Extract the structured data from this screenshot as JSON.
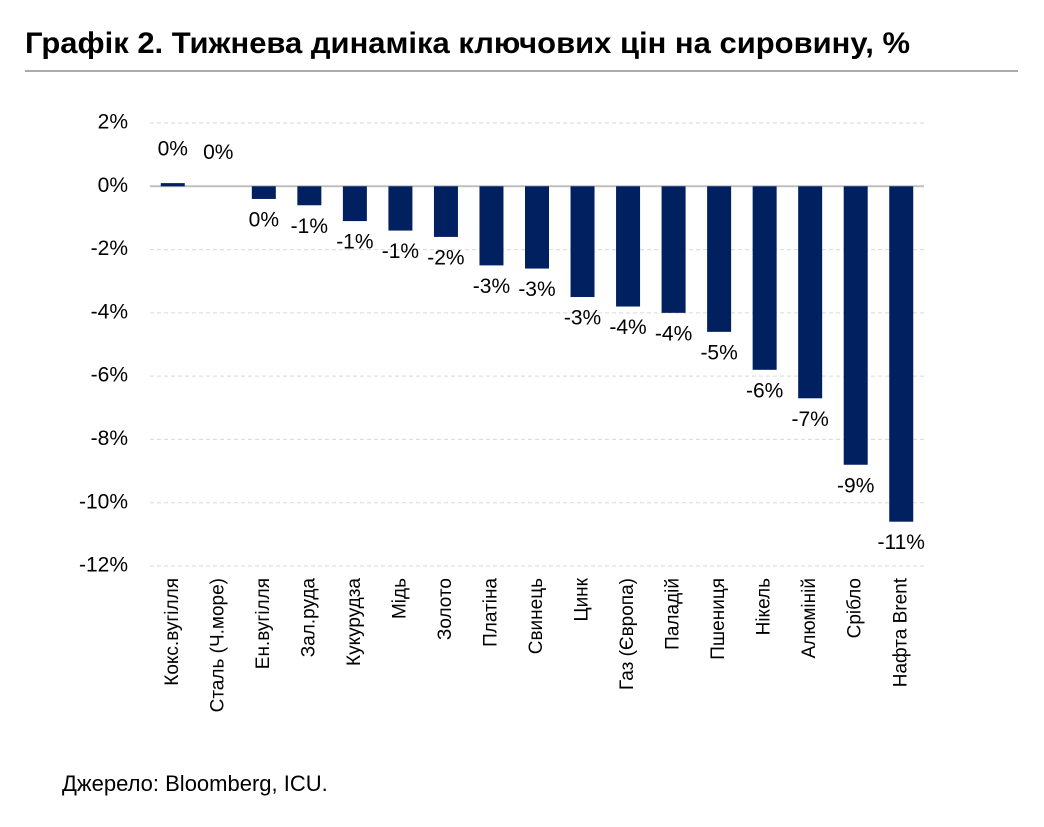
{
  "chart_data": {
    "type": "bar",
    "title": "Графік 2. Тижнева динаміка ключових цін на сировину, %",
    "source": "Джерело: Bloomberg, ICU.",
    "categories": [
      "Кокс.вугілля",
      "Сталь (Ч.море)",
      "Ен.вугілля",
      "Зал.руда",
      "Кукурудза",
      "Мідь",
      "Золото",
      "Платіна",
      "Свинець",
      "Цинк",
      "Газ (Європа)",
      "Паладій",
      "Пшениця",
      "Нікель",
      "Алюміній",
      "Срібло",
      "Нафта Brent"
    ],
    "values": [
      0.1,
      0.0,
      -0.4,
      -0.6,
      -1.1,
      -1.4,
      -1.6,
      -2.5,
      -2.6,
      -3.5,
      -3.8,
      -4.0,
      -4.6,
      -5.8,
      -6.7,
      -8.8,
      -10.6
    ],
    "value_labels": [
      "0%",
      "0%",
      "0%",
      "-1%",
      "-1%",
      "-1%",
      "-2%",
      "-3%",
      "-3%",
      "-3%",
      "-4%",
      "-4%",
      "-5%",
      "-6%",
      "-7%",
      "-9%",
      "-11%"
    ],
    "color": "#002060",
    "ylim": [
      -12,
      2
    ],
    "yticks": [
      {
        "value": 2,
        "label": "2%"
      },
      {
        "value": 0,
        "label": "0%"
      },
      {
        "value": -2,
        "label": "-2%"
      },
      {
        "value": -4,
        "label": "-4%"
      },
      {
        "value": -6,
        "label": "-6%"
      },
      {
        "value": -8,
        "label": "-8%"
      },
      {
        "value": -10,
        "label": "-10%"
      },
      {
        "value": -12,
        "label": "-12%"
      }
    ],
    "grid": true
  }
}
